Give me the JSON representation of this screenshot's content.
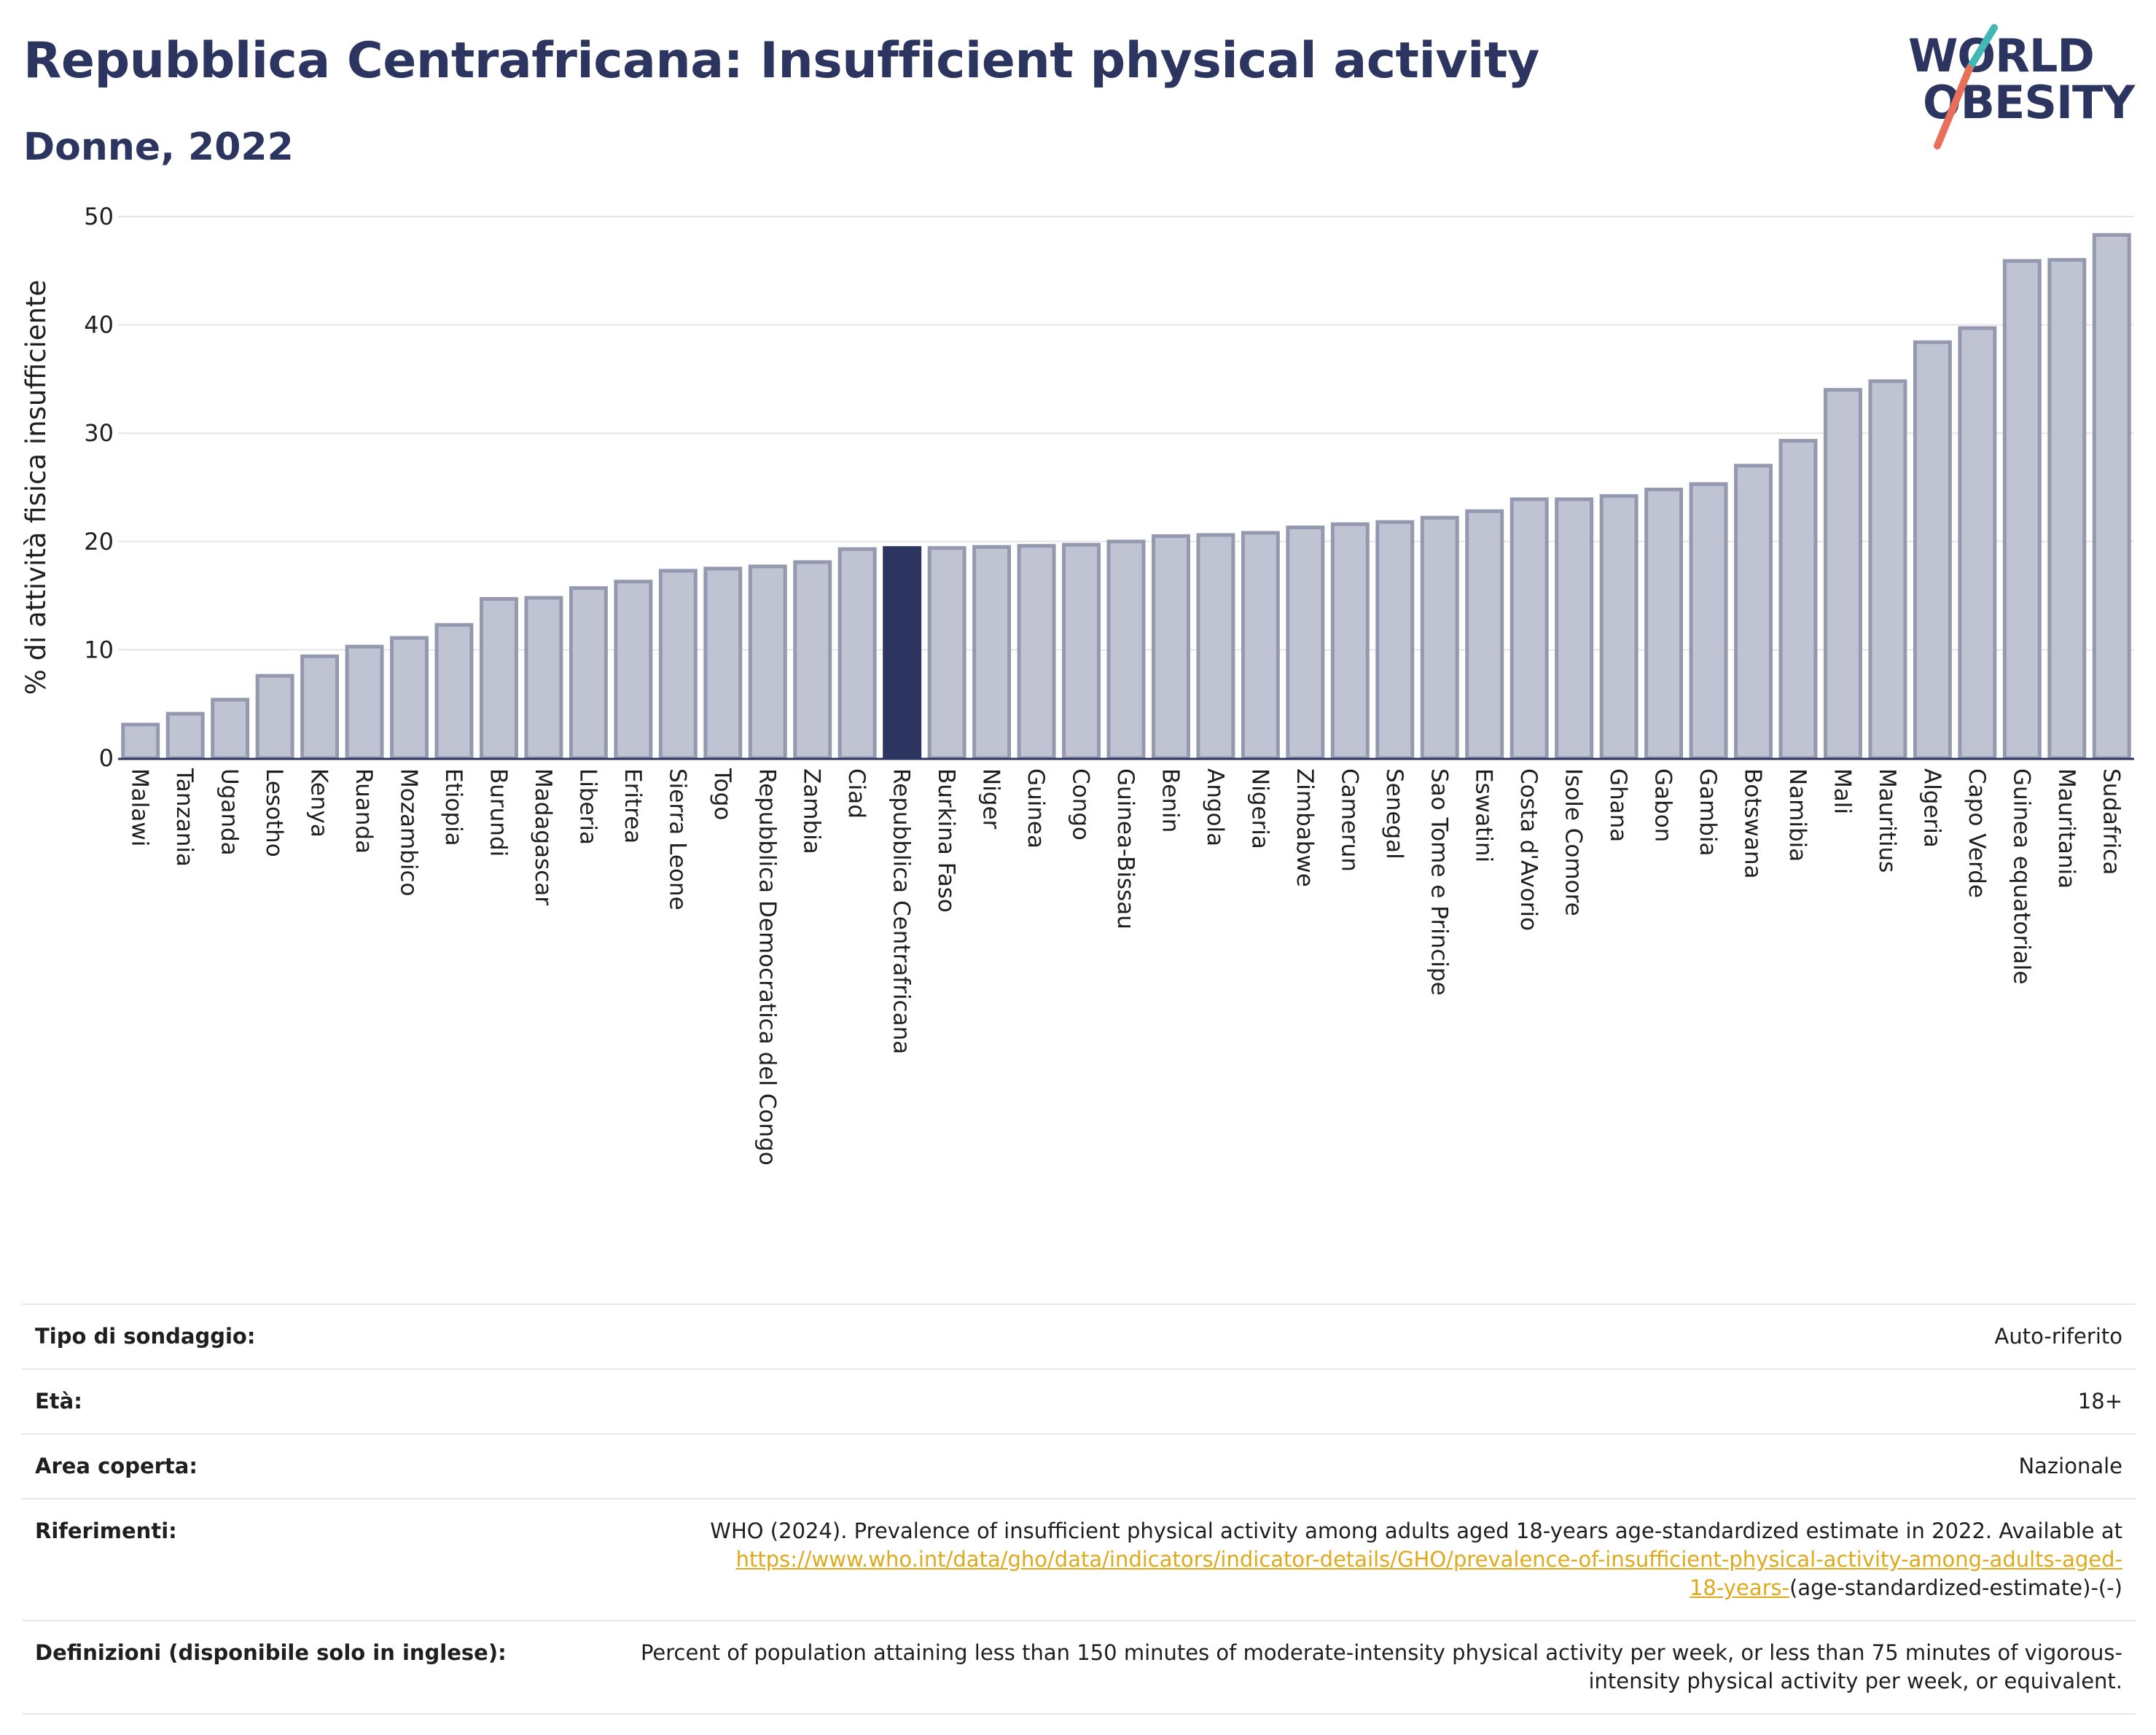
{
  "header": {
    "title": "Repubblica Centrafricana: Insufficient physical activity",
    "subtitle": "Donne, 2022"
  },
  "logo": {
    "line1": "WORLD",
    "line2": "OBESITY",
    "accent_color": "#e8705a",
    "accent_color2": "#41b8b6"
  },
  "colors": {
    "bar": "#bfc3d2",
    "bar_border": "#9499b0",
    "highlight": "#2c3560"
  },
  "chart_data": {
    "type": "bar",
    "title": "Repubblica Centrafricana: Insufficient physical activity",
    "subtitle": "Donne, 2022",
    "xlabel": "",
    "ylabel": "% di attività fisica insufficiente",
    "ylim": [
      0,
      50
    ],
    "yticks": [
      0,
      10,
      20,
      30,
      40,
      50
    ],
    "grid": true,
    "highlight": "Repubblica Centrafricana",
    "categories": [
      "Malawi",
      "Tanzania",
      "Uganda",
      "Lesotho",
      "Kenya",
      "Ruanda",
      "Mozambico",
      "Etiopia",
      "Burundi",
      "Madagascar",
      "Liberia",
      "Eritrea",
      "Sierra Leone",
      "Togo",
      "Repubblica Democratica del Congo",
      "Zambia",
      "Ciad",
      "Repubblica Centrafricana",
      "Burkina Faso",
      "Niger",
      "Guinea",
      "Congo",
      "Guinea-Bissau",
      "Benin",
      "Angola",
      "Nigeria",
      "Zimbabwe",
      "Camerun",
      "Senegal",
      "Sao Tome e Principe",
      "Eswatini",
      "Costa d'Avorio",
      "Isole Comore",
      "Ghana",
      "Gabon",
      "Gambia",
      "Botswana",
      "Namibia",
      "Mali",
      "Mauritius",
      "Algeria",
      "Capo Verde",
      "Guinea equatoriale",
      "Mauritania",
      "Sudafrica"
    ],
    "values": [
      3.1,
      4.1,
      5.4,
      7.6,
      9.4,
      10.3,
      11.1,
      12.3,
      14.7,
      14.8,
      15.7,
      16.3,
      17.3,
      17.5,
      17.7,
      18.1,
      19.3,
      19.4,
      19.4,
      19.5,
      19.6,
      19.7,
      20.0,
      20.5,
      20.6,
      20.8,
      21.3,
      21.6,
      21.8,
      22.2,
      22.8,
      23.9,
      23.9,
      24.2,
      24.8,
      25.3,
      27.0,
      29.3,
      34.0,
      34.8,
      38.4,
      39.7,
      45.9,
      46.0,
      48.3
    ]
  },
  "info": {
    "survey_label": "Tipo di sondaggio:",
    "survey_value": "Auto-riferito",
    "age_label": "Età:",
    "age_value": "18+",
    "area_label": "Area coperta:",
    "area_value": "Nazionale",
    "refs_label": "Riferimenti:",
    "refs_text": "WHO (2024). Prevalence of insufficient physical activity among adults aged 18-years age-standardized estimate in 2022. Available at",
    "refs_link_line1": "https://www.who.int/data/gho/data/indicators/indicator-details/GHO/prevalence-of-insufficient-physical-activity-among-adults-aged-",
    "refs_link_line2": "18-years-",
    "refs_tail": "(age-standardized-estimate)-(-)",
    "def_label": "Definizioni (disponibile solo in inglese):",
    "def_text": "Percent of population attaining less than 150 minutes of moderate-intensity physical activity per week, or less than 75 minutes of vigorous-intensity physical activity per week, or equivalent."
  }
}
